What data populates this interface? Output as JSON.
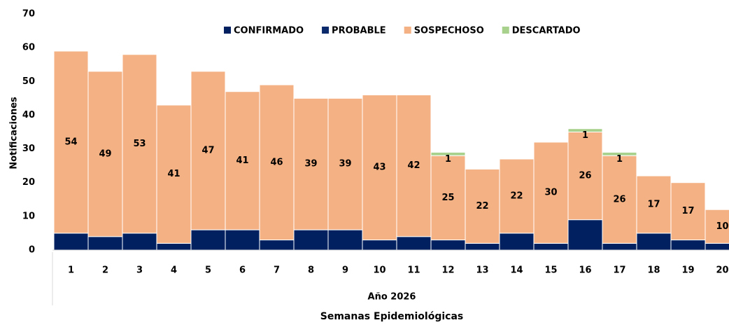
{
  "chart_data": {
    "type": "bar",
    "stacked": true,
    "x_label": "Semanas Epidemiológicas",
    "x_group_label": "Año 2026",
    "y_label": "Notificaciones",
    "categories": [
      "1",
      "2",
      "3",
      "4",
      "5",
      "6",
      "7",
      "8",
      "9",
      "10",
      "11",
      "12",
      "13",
      "14",
      "15",
      "16",
      "17",
      "18",
      "19",
      "20"
    ],
    "series": [
      {
        "name": "CONFIRMADO",
        "color": "#002060",
        "values": [
          5,
          4,
          5,
          2,
          6,
          6,
          3,
          6,
          6,
          3,
          4,
          3,
          2,
          5,
          2,
          9,
          2,
          5,
          3,
          2
        ]
      },
      {
        "name": "PROBABLE",
        "color": "#0a2a6b",
        "values": [
          0,
          0,
          0,
          0,
          0,
          0,
          0,
          0,
          0,
          0,
          0,
          0,
          0,
          0,
          0,
          0,
          0,
          0,
          0,
          0
        ]
      },
      {
        "name": "SOSPECHOSO",
        "color": "#f4b183",
        "values": [
          54,
          49,
          53,
          41,
          47,
          41,
          46,
          39,
          39,
          43,
          42,
          25,
          22,
          22,
          30,
          26,
          26,
          17,
          17,
          10
        ],
        "show_labels": true
      },
      {
        "name": "DESCARTADO",
        "color": "#a9d18e",
        "values": [
          0,
          0,
          0,
          0,
          0,
          0,
          0,
          0,
          0,
          0,
          0,
          1,
          0,
          0,
          0,
          1,
          1,
          0,
          0,
          0
        ],
        "show_labels": true
      }
    ],
    "ylim": [
      0,
      70
    ],
    "yticks": [
      0,
      10,
      20,
      30,
      40,
      50,
      60,
      70
    ],
    "grid": false,
    "legend": "top"
  }
}
